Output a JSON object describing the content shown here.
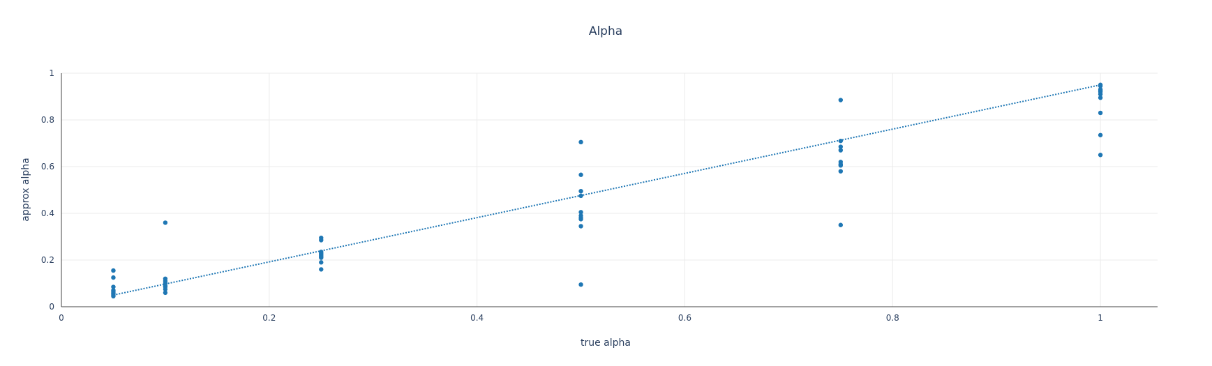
{
  "chart_data": {
    "type": "scatter",
    "title": "Alpha",
    "xlabel": "true alpha",
    "ylabel": "approx alpha",
    "xlim": [
      0,
      1.055
    ],
    "ylim": [
      0,
      1.0
    ],
    "xticks": [
      0,
      0.2,
      0.4,
      0.6,
      0.8,
      1
    ],
    "xtick_labels": [
      "0",
      "0.2",
      "0.4",
      "0.6",
      "0.8",
      "1"
    ],
    "yticks": [
      0,
      0.2,
      0.4,
      0.6,
      0.8,
      1
    ],
    "ytick_labels": [
      "0",
      "0.2",
      "0.4",
      "0.6",
      "0.8",
      "1"
    ],
    "grid": true,
    "legend": "none",
    "color": "#1f77b4",
    "series": [
      {
        "mode": "markers",
        "x": [
          0.05,
          0.05,
          0.05,
          0.05,
          0.05,
          0.05,
          0.05,
          0.05,
          0.05,
          0.1,
          0.1,
          0.1,
          0.1,
          0.1,
          0.1,
          0.1,
          0.1,
          0.25,
          0.25,
          0.25,
          0.25,
          0.25,
          0.25,
          0.25,
          0.25,
          0.25,
          0.25,
          0.5,
          0.5,
          0.5,
          0.5,
          0.5,
          0.5,
          0.5,
          0.5,
          0.5,
          0.5,
          0.75,
          0.75,
          0.75,
          0.75,
          0.75,
          0.75,
          0.75,
          0.75,
          0.75,
          1,
          1,
          1,
          1,
          1,
          1,
          1,
          1,
          1,
          1
        ],
        "y": [
          0.155,
          0.125,
          0.085,
          0.07,
          0.065,
          0.06,
          0.055,
          0.05,
          0.045,
          0.36,
          0.12,
          0.11,
          0.1,
          0.09,
          0.085,
          0.075,
          0.06,
          0.295,
          0.285,
          0.235,
          0.225,
          0.22,
          0.215,
          0.21,
          0.19,
          0.16,
          0.23,
          0.705,
          0.565,
          0.495,
          0.475,
          0.405,
          0.39,
          0.375,
          0.345,
          0.095,
          0.38,
          0.885,
          0.71,
          0.685,
          0.67,
          0.62,
          0.61,
          0.605,
          0.58,
          0.35,
          0.95,
          0.945,
          0.925,
          0.92,
          0.91,
          0.895,
          0.83,
          0.735,
          0.65,
          0.93
        ]
      },
      {
        "mode": "lines",
        "dash": "dot",
        "x": [
          0.05,
          1
        ],
        "y": [
          0.05,
          0.95
        ]
      }
    ]
  }
}
